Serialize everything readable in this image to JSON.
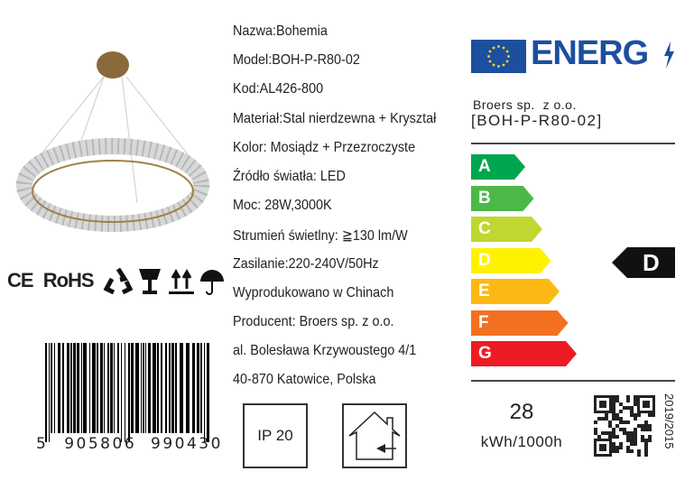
{
  "specs": [
    "Nazwa:Bohemia",
    "Model:BOH-P-R80-02",
    "Kod:AL426-800",
    "Materiał:Stal nierdzewna + Kryształ",
    "Kolor: Mosiądz + Przezroczyste",
    "Źródło światła: LED",
    "Moc: 28W,3000K",
    "Strumień świetlny: ≧130 lm/W",
    "Zasilanie:220-240V/50Hz",
    "Wyprodukowano w Chinach",
    "Producent: Broers sp. z o.o.",
    "al. Bolesława Krzywoustego 4/1",
    "40-870 Katowice, Polska"
  ],
  "certifications": {
    "ce": "CE",
    "rohs": "RoHS",
    "icons": [
      "recycle-icon",
      "fragile-glass-icon",
      "this-way-up-icon",
      "keep-dry-umbrella-icon"
    ]
  },
  "barcode": {
    "first_digit": "5",
    "left_group": "905806",
    "right_group": "990430"
  },
  "ip_rating": "IP 20",
  "indoor_icon": "indoor-use-house-icon",
  "energy": {
    "logo_text": "ENERG",
    "supplier": "Broers sp.  z o.o.",
    "model": "[BOH-P-R80-02]",
    "classes": [
      {
        "label": "A",
        "color": "#00a54f"
      },
      {
        "label": "B",
        "color": "#4db848"
      },
      {
        "label": "C",
        "color": "#bfd730"
      },
      {
        "label": "D",
        "color": "#fff200"
      },
      {
        "label": "E",
        "color": "#fdb913"
      },
      {
        "label": "F",
        "color": "#f37021"
      },
      {
        "label": "G",
        "color": "#ed1c24"
      }
    ],
    "rating": "D",
    "consumption_value": "28",
    "consumption_unit": "kWh/1000h",
    "regulation": "2019/2015",
    "eu_blue": "#1d4f9f"
  }
}
